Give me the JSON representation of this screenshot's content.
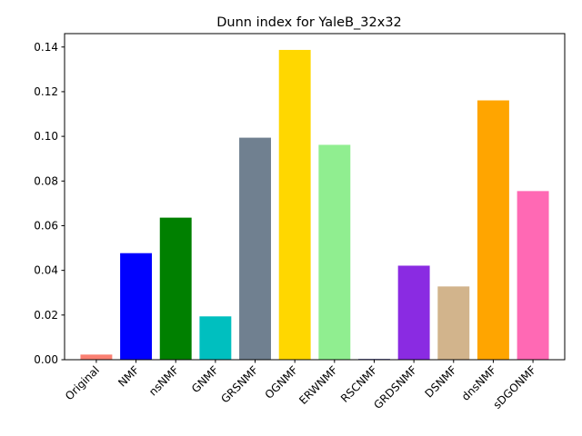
{
  "chart_data": {
    "type": "bar",
    "title": "Dunn index for YaleB_32x32",
    "xlabel": "",
    "ylabel": "",
    "categories": [
      "Original",
      "NMF",
      "nsNMF",
      "GNMF",
      "GRSNMF",
      "OGNMF",
      "ERWNMF",
      "RSCNMF",
      "GRDSNMF",
      "DSNMF",
      "dnsNMF",
      "sDGONMF"
    ],
    "values": [
      0.0023,
      0.0477,
      0.0636,
      0.0194,
      0.0994,
      0.1387,
      0.0962,
      0.0003,
      0.0421,
      0.0328,
      0.1161,
      0.0755
    ],
    "colors": [
      "#fa8072",
      "#0000ff",
      "#008000",
      "#00bfbf",
      "#708090",
      "#ffd700",
      "#90ee90",
      "#000080",
      "#8a2be2",
      "#d2b48c",
      "#ffa500",
      "#ff69b4"
    ],
    "ylim": [
      0,
      0.146
    ],
    "yticks": [
      "0.00",
      "0.02",
      "0.04",
      "0.06",
      "0.08",
      "0.10",
      "0.12",
      "0.14"
    ],
    "grid": false,
    "legend": "none"
  }
}
